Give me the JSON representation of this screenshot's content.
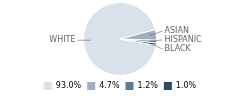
{
  "chart_data": {
    "type": "pie",
    "categories": [
      "WHITE",
      "ASIAN",
      "HISPANIC",
      "BLACK"
    ],
    "values": [
      93.0,
      4.7,
      1.2,
      1.0
    ],
    "value_labels": [
      "93.0%",
      "4.7%",
      "1.2%",
      "1.0%"
    ],
    "colors": [
      "#d9e2ea",
      "#9dafc0",
      "#5a7a96",
      "#2e4a62"
    ],
    "legend": "bottom"
  }
}
